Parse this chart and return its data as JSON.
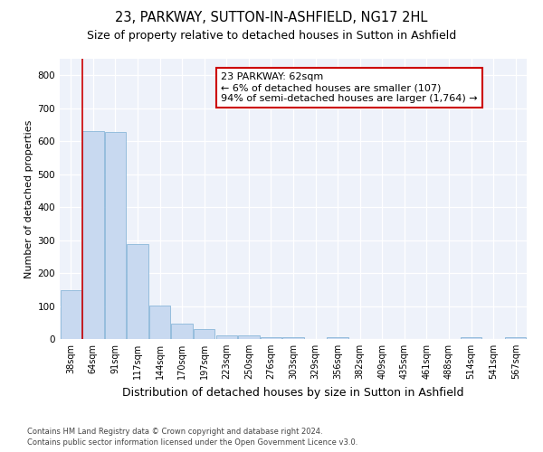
{
  "title": "23, PARKWAY, SUTTON-IN-ASHFIELD, NG17 2HL",
  "subtitle": "Size of property relative to detached houses in Sutton in Ashfield",
  "xlabel": "Distribution of detached houses by size in Sutton in Ashfield",
  "ylabel": "Number of detached properties",
  "footer_line1": "Contains HM Land Registry data © Crown copyright and database right 2024.",
  "footer_line2": "Contains public sector information licensed under the Open Government Licence v3.0.",
  "annotation_line1": "23 PARKWAY: 62sqm",
  "annotation_line2": "← 6% of detached houses are smaller (107)",
  "annotation_line3": "94% of semi-detached houses are larger (1,764) →",
  "bar_color": "#c8d9f0",
  "bar_edge_color": "#7aadd4",
  "marker_color": "#cc0000",
  "background_color": "#eef2fa",
  "categories": [
    "38sqm",
    "64sqm",
    "91sqm",
    "117sqm",
    "144sqm",
    "170sqm",
    "197sqm",
    "223sqm",
    "250sqm",
    "276sqm",
    "303sqm",
    "329sqm",
    "356sqm",
    "382sqm",
    "409sqm",
    "435sqm",
    "461sqm",
    "488sqm",
    "514sqm",
    "541sqm",
    "567sqm"
  ],
  "values": [
    148,
    632,
    627,
    287,
    102,
    46,
    31,
    10,
    10,
    5,
    5,
    0,
    5,
    0,
    0,
    0,
    0,
    0,
    5,
    0,
    5
  ],
  "ylim": [
    0,
    850
  ],
  "yticks": [
    0,
    100,
    200,
    300,
    400,
    500,
    600,
    700,
    800
  ],
  "title_fontsize": 10.5,
  "subtitle_fontsize": 9,
  "xlabel_fontsize": 9,
  "ylabel_fontsize": 8,
  "annotation_fontsize": 8,
  "tick_fontsize": 7,
  "footer_fontsize": 6
}
